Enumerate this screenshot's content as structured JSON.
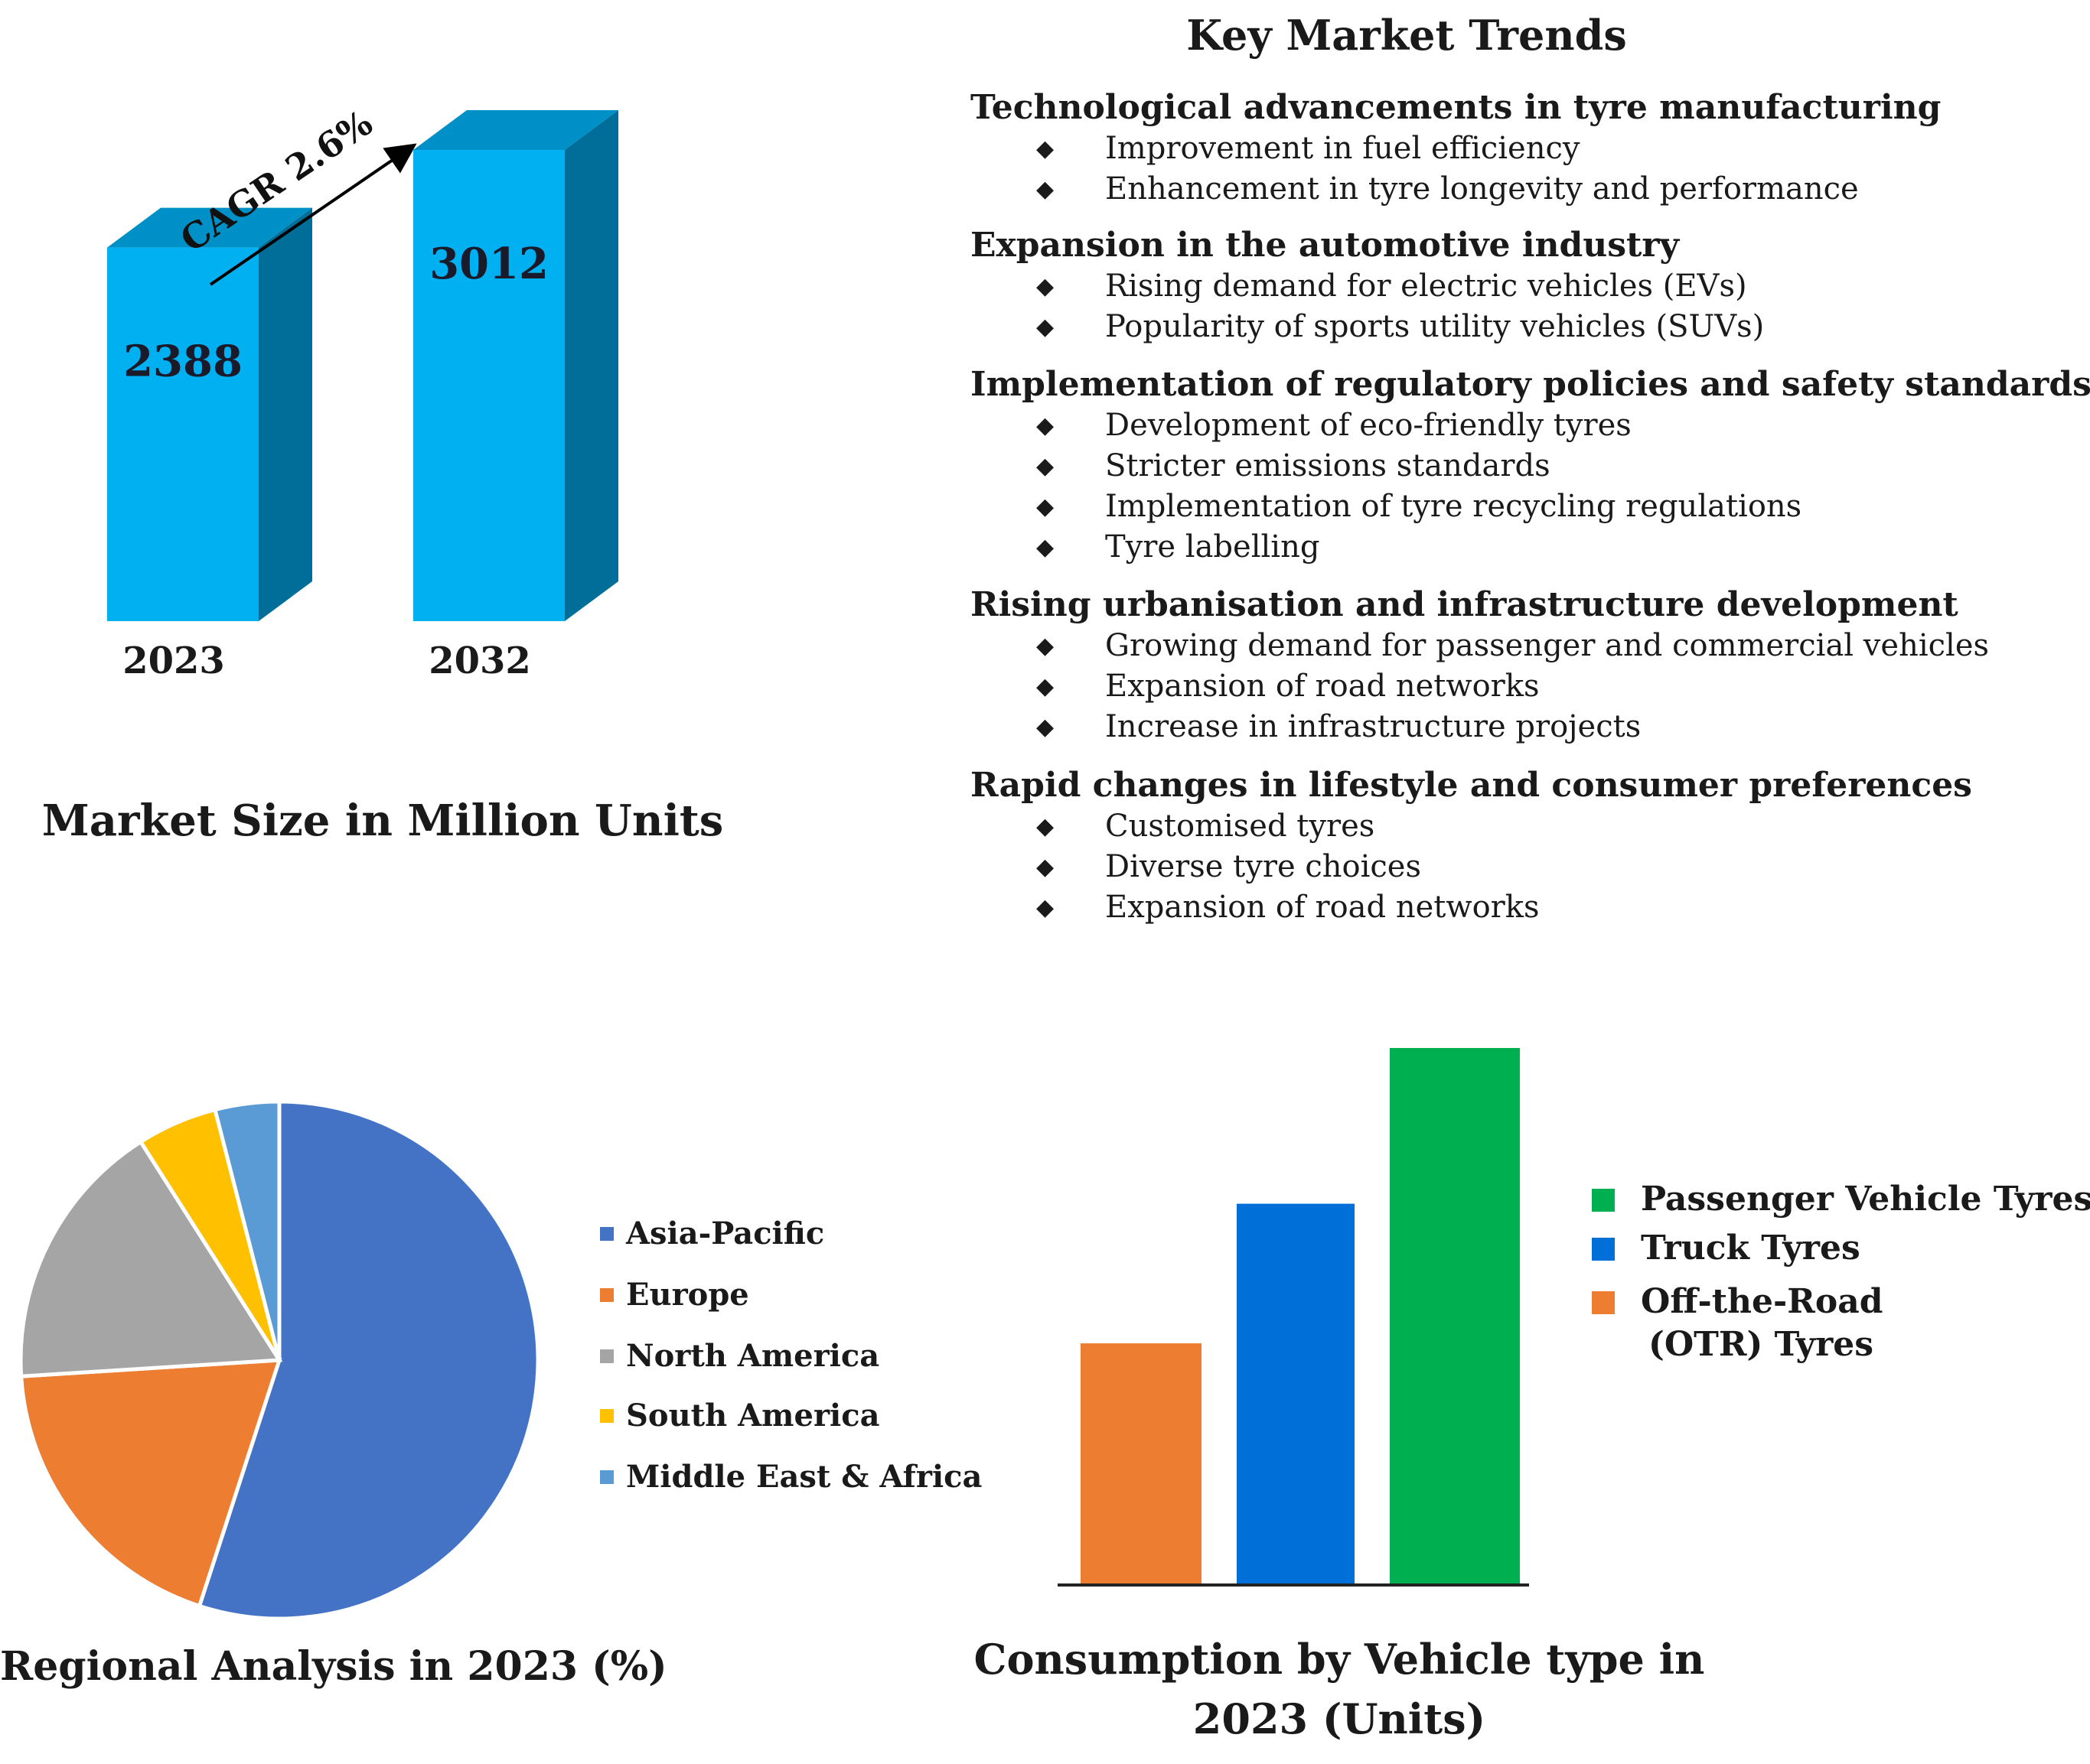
{
  "key_trends": {
    "title": "Key Market Trends",
    "groups": [
      {
        "heading": "Technological advancements in tyre manufacturing",
        "bullets": [
          "Improvement in fuel efficiency",
          "Enhancement in tyre longevity and performance"
        ]
      },
      {
        "heading": "Expansion in the automotive industry",
        "bullets": [
          "Rising demand for electric vehicles (EVs)",
          "Popularity of sports utility vehicles (SUVs)"
        ]
      },
      {
        "heading": "Implementation of regulatory policies and safety standards",
        "bullets": [
          "Development of eco-friendly tyres",
          "Stricter emissions standards",
          "Implementation of tyre recycling regulations",
          "Tyre labelling"
        ]
      },
      {
        "heading": "Rising urbanisation and infrastructure development",
        "bullets": [
          "Growing demand for passenger and commercial vehicles",
          "Expansion of road networks",
          "Increase in infrastructure projects"
        ]
      },
      {
        "heading": "Rapid changes in lifestyle and consumer preferences",
        "bullets": [
          "Customised tyres",
          "Diverse tyre choices",
          "Expansion of road networks"
        ]
      }
    ]
  },
  "chart_data": [
    {
      "type": "bar",
      "title": "Market Size in Million Units",
      "categories": [
        "2023",
        "2032"
      ],
      "values": [
        2388,
        3012
      ],
      "value_labels": [
        "2388",
        "3012"
      ],
      "annotation": "CAGR 2.6%",
      "ylim": [
        0,
        3012
      ],
      "colors": {
        "front": "#00b0f0",
        "top": "#0090c8",
        "side": "#006e99"
      }
    },
    {
      "type": "pie",
      "title": "Regional Analysis in 2023 (%)",
      "labels": [
        "Asia-Pacific",
        "Europe",
        "North America",
        "South America",
        "Middle East & Africa"
      ],
      "values": [
        55,
        19,
        17,
        5,
        4
      ],
      "colors": [
        "#4472c4",
        "#ed7d31",
        "#a5a5a5",
        "#ffc000",
        "#5b9bd5"
      ]
    },
    {
      "type": "bar",
      "title": "Consumption by Vehicle type in 2023 (Units)",
      "categories": [
        "Off-the-Road (OTR) Tyres",
        "Truck Tyres",
        "Passenger Vehicle Tyres"
      ],
      "values": [
        45,
        71,
        100
      ],
      "ylim": [
        0,
        100
      ],
      "colors": [
        "#ed7d31",
        "#0070d8",
        "#00b050"
      ],
      "legend": [
        {
          "label": "Passenger Vehicle Tyres",
          "color": "#00b050"
        },
        {
          "label": "Truck Tyres",
          "color": "#0070d8"
        },
        {
          "label": "Off-the-Road",
          "label2": "(OTR) Tyres",
          "color": "#ed7d31"
        }
      ]
    }
  ]
}
